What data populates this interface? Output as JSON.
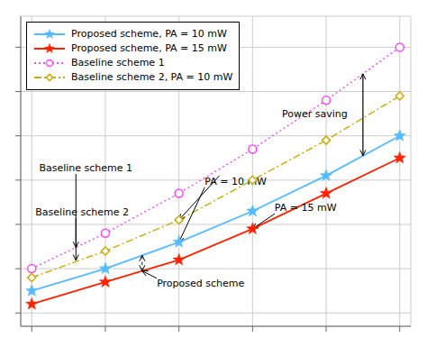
{
  "chart_data": {
    "type": "line",
    "x": [
      0,
      1,
      2,
      3,
      4,
      5
    ],
    "series": [
      {
        "name": "Proposed scheme, PA = 10 mW",
        "color": "#55BBFF",
        "marker": "star",
        "line_style": "solid",
        "values": [
          5,
          10,
          16,
          23,
          31,
          40
        ]
      },
      {
        "name": "Proposed scheme, PA = 15 mW",
        "color": "#FF2200",
        "marker": "star",
        "line_style": "solid",
        "values": [
          2,
          7,
          12,
          19,
          27,
          35
        ]
      },
      {
        "name": "Baseline scheme 1",
        "color": "#FF44FF",
        "marker": "circle",
        "line_style": "dotted",
        "values": [
          10,
          18,
          27,
          37,
          48,
          60
        ]
      },
      {
        "name": "Baseline scheme 2, PA = 10 mW",
        "color": "#CCAA00",
        "marker": "diamond",
        "line_style": "dashdot",
        "values": [
          8,
          14,
          21,
          30,
          39,
          49
        ]
      }
    ],
    "xlim": [
      -0.15,
      5.15
    ],
    "ylim": [
      -3,
      67
    ],
    "xticks": [
      0,
      1,
      2,
      3,
      4,
      5
    ],
    "yticks": [
      0,
      10,
      20,
      30,
      40,
      50,
      60
    ],
    "grid": true,
    "legend": "upper left",
    "tick_labels": false,
    "annotations": [
      "Baseline scheme 1",
      "Baseline scheme 2",
      "PA = 10 mW",
      "PA = 15 mW",
      "Proposed scheme",
      "Power saving"
    ]
  }
}
